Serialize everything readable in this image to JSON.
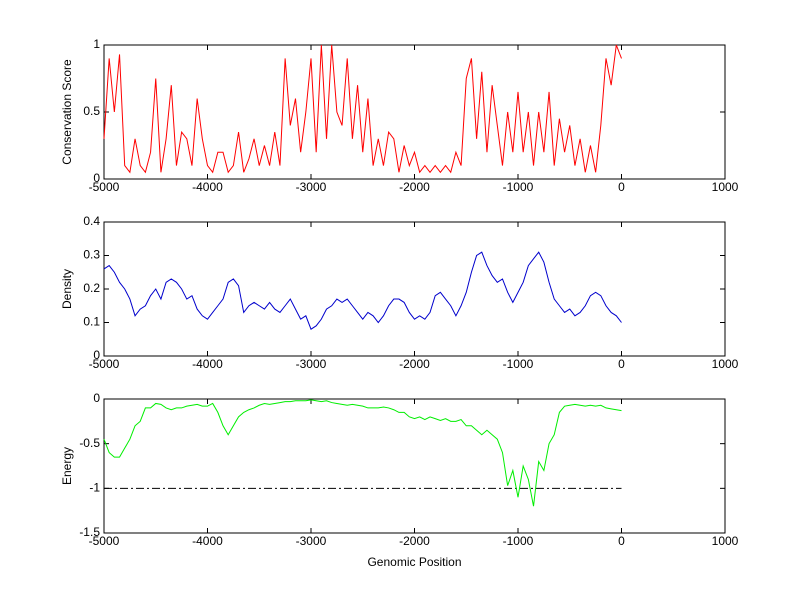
{
  "chart_data": [
    {
      "type": "line",
      "ylabel": "Conservation Score",
      "x": [
        -5000,
        -4950,
        -4900,
        -4850,
        -4800,
        -4750,
        -4700,
        -4650,
        -4600,
        -4550,
        -4500,
        -4450,
        -4400,
        -4350,
        -4300,
        -4250,
        -4200,
        -4150,
        -4100,
        -4050,
        -4000,
        -3950,
        -3900,
        -3850,
        -3800,
        -3750,
        -3700,
        -3650,
        -3600,
        -3550,
        -3500,
        -3450,
        -3400,
        -3350,
        -3300,
        -3250,
        -3200,
        -3150,
        -3100,
        -3050,
        -3000,
        -2950,
        -2900,
        -2850,
        -2800,
        -2750,
        -2700,
        -2650,
        -2600,
        -2550,
        -2500,
        -2450,
        -2400,
        -2350,
        -2300,
        -2250,
        -2200,
        -2150,
        -2100,
        -2050,
        -2000,
        -1950,
        -1900,
        -1850,
        -1800,
        -1750,
        -1700,
        -1650,
        -1600,
        -1550,
        -1500,
        -1450,
        -1400,
        -1350,
        -1300,
        -1250,
        -1200,
        -1150,
        -1100,
        -1050,
        -1000,
        -950,
        -900,
        -850,
        -800,
        -750,
        -700,
        -650,
        -600,
        -550,
        -500,
        -450,
        -400,
        -350,
        -300,
        -250,
        -200,
        -150,
        -100,
        -50,
        0
      ],
      "series": [
        {
          "color": "#ff0000",
          "values": [
            0.3,
            0.9,
            0.5,
            0.93,
            0.1,
            0.05,
            0.3,
            0.1,
            0.05,
            0.2,
            0.75,
            0.05,
            0.3,
            0.7,
            0.1,
            0.35,
            0.3,
            0.1,
            0.6,
            0.3,
            0.1,
            0.05,
            0.2,
            0.2,
            0.05,
            0.1,
            0.35,
            0.05,
            0.15,
            0.3,
            0.1,
            0.25,
            0.1,
            0.35,
            0.1,
            0.9,
            0.4,
            0.6,
            0.2,
            0.5,
            0.9,
            0.2,
            1.0,
            0.3,
            1.0,
            0.5,
            0.4,
            0.9,
            0.3,
            0.7,
            0.2,
            0.6,
            0.1,
            0.3,
            0.1,
            0.35,
            0.3,
            0.05,
            0.25,
            0.1,
            0.2,
            0.05,
            0.1,
            0.05,
            0.1,
            0.05,
            0.1,
            0.05,
            0.2,
            0.1,
            0.75,
            0.9,
            0.3,
            0.8,
            0.2,
            0.7,
            0.4,
            0.1,
            0.5,
            0.2,
            0.65,
            0.2,
            0.5,
            0.1,
            0.5,
            0.2,
            0.65,
            0.1,
            0.45,
            0.2,
            0.4,
            0.1,
            0.3,
            0.05,
            0.25,
            0.05,
            0.4,
            0.9,
            0.7,
            1.0,
            0.9
          ]
        }
      ],
      "xlim": [
        -5000,
        1000
      ],
      "xticks": [
        -5000,
        -4000,
        -3000,
        -2000,
        -1000,
        0,
        1000
      ],
      "ylim": [
        0,
        1
      ],
      "yticks": [
        0,
        0.5,
        1
      ]
    },
    {
      "type": "line",
      "ylabel": "Density",
      "x": [
        -5000,
        -4950,
        -4900,
        -4850,
        -4800,
        -4750,
        -4700,
        -4650,
        -4600,
        -4550,
        -4500,
        -4450,
        -4400,
        -4350,
        -4300,
        -4250,
        -4200,
        -4150,
        -4100,
        -4050,
        -4000,
        -3950,
        -3900,
        -3850,
        -3800,
        -3750,
        -3700,
        -3650,
        -3600,
        -3550,
        -3500,
        -3450,
        -3400,
        -3350,
        -3300,
        -3250,
        -3200,
        -3150,
        -3100,
        -3050,
        -3000,
        -2950,
        -2900,
        -2850,
        -2800,
        -2750,
        -2700,
        -2650,
        -2600,
        -2550,
        -2500,
        -2450,
        -2400,
        -2350,
        -2300,
        -2250,
        -2200,
        -2150,
        -2100,
        -2050,
        -2000,
        -1950,
        -1900,
        -1850,
        -1800,
        -1750,
        -1700,
        -1650,
        -1600,
        -1550,
        -1500,
        -1450,
        -1400,
        -1350,
        -1300,
        -1250,
        -1200,
        -1150,
        -1100,
        -1050,
        -1000,
        -950,
        -900,
        -850,
        -800,
        -750,
        -700,
        -650,
        -600,
        -550,
        -500,
        -450,
        -400,
        -350,
        -300,
        -250,
        -200,
        -150,
        -100,
        -50,
        0
      ],
      "series": [
        {
          "color": "#0000cc",
          "values": [
            0.26,
            0.27,
            0.25,
            0.22,
            0.2,
            0.17,
            0.12,
            0.14,
            0.15,
            0.18,
            0.2,
            0.17,
            0.22,
            0.23,
            0.22,
            0.2,
            0.17,
            0.18,
            0.14,
            0.12,
            0.11,
            0.13,
            0.15,
            0.17,
            0.22,
            0.23,
            0.21,
            0.13,
            0.15,
            0.16,
            0.15,
            0.14,
            0.16,
            0.14,
            0.13,
            0.15,
            0.17,
            0.14,
            0.11,
            0.12,
            0.08,
            0.09,
            0.11,
            0.14,
            0.15,
            0.17,
            0.16,
            0.17,
            0.15,
            0.13,
            0.11,
            0.13,
            0.12,
            0.1,
            0.12,
            0.15,
            0.17,
            0.17,
            0.16,
            0.13,
            0.11,
            0.12,
            0.11,
            0.13,
            0.18,
            0.19,
            0.17,
            0.15,
            0.12,
            0.15,
            0.19,
            0.25,
            0.3,
            0.31,
            0.27,
            0.24,
            0.22,
            0.23,
            0.19,
            0.16,
            0.19,
            0.22,
            0.27,
            0.29,
            0.31,
            0.28,
            0.22,
            0.17,
            0.15,
            0.13,
            0.14,
            0.12,
            0.13,
            0.15,
            0.18,
            0.19,
            0.18,
            0.15,
            0.13,
            0.12,
            0.1
          ]
        }
      ],
      "xlim": [
        -5000,
        1000
      ],
      "xticks": [
        -5000,
        -4000,
        -3000,
        -2000,
        -1000,
        0,
        1000
      ],
      "ylim": [
        0,
        0.4
      ],
      "yticks": [
        0,
        0.1,
        0.2,
        0.3,
        0.4
      ]
    },
    {
      "type": "line",
      "ylabel": "Energy",
      "xlabel": "Genomic Position",
      "x": [
        -5000,
        -4950,
        -4900,
        -4850,
        -4800,
        -4750,
        -4700,
        -4650,
        -4600,
        -4550,
        -4500,
        -4450,
        -4400,
        -4350,
        -4300,
        -4250,
        -4200,
        -4150,
        -4100,
        -4050,
        -4000,
        -3950,
        -3900,
        -3850,
        -3800,
        -3750,
        -3700,
        -3650,
        -3600,
        -3550,
        -3500,
        -3450,
        -3400,
        -3350,
        -3300,
        -3250,
        -3200,
        -3150,
        -3100,
        -3050,
        -3000,
        -2950,
        -2900,
        -2850,
        -2800,
        -2750,
        -2700,
        -2650,
        -2600,
        -2550,
        -2500,
        -2450,
        -2400,
        -2350,
        -2300,
        -2250,
        -2200,
        -2150,
        -2100,
        -2050,
        -2000,
        -1950,
        -1900,
        -1850,
        -1800,
        -1750,
        -1700,
        -1650,
        -1600,
        -1550,
        -1500,
        -1450,
        -1400,
        -1350,
        -1300,
        -1250,
        -1200,
        -1150,
        -1100,
        -1050,
        -1000,
        -950,
        -900,
        -850,
        -800,
        -750,
        -700,
        -650,
        -600,
        -550,
        -500,
        -450,
        -400,
        -350,
        -300,
        -250,
        -200,
        -150,
        -100,
        -50,
        0
      ],
      "series": [
        {
          "color": "#00ee00",
          "values": [
            -0.45,
            -0.6,
            -0.65,
            -0.65,
            -0.55,
            -0.45,
            -0.3,
            -0.25,
            -0.1,
            -0.1,
            -0.05,
            -0.06,
            -0.1,
            -0.12,
            -0.1,
            -0.1,
            -0.08,
            -0.07,
            -0.06,
            -0.08,
            -0.08,
            -0.05,
            -0.15,
            -0.3,
            -0.4,
            -0.3,
            -0.2,
            -0.15,
            -0.12,
            -0.1,
            -0.07,
            -0.05,
            -0.06,
            -0.05,
            -0.04,
            -0.03,
            -0.03,
            -0.02,
            -0.02,
            -0.02,
            -0.01,
            -0.02,
            -0.03,
            -0.02,
            -0.04,
            -0.05,
            -0.06,
            -0.07,
            -0.06,
            -0.07,
            -0.08,
            -0.1,
            -0.1,
            -0.1,
            -0.09,
            -0.1,
            -0.12,
            -0.15,
            -0.15,
            -0.2,
            -0.22,
            -0.2,
            -0.23,
            -0.2,
            -0.22,
            -0.24,
            -0.22,
            -0.25,
            -0.25,
            -0.23,
            -0.3,
            -0.3,
            -0.35,
            -0.4,
            -0.35,
            -0.4,
            -0.45,
            -0.6,
            -0.97,
            -0.8,
            -1.1,
            -0.75,
            -0.9,
            -1.2,
            -0.7,
            -0.8,
            -0.5,
            -0.4,
            -0.15,
            -0.08,
            -0.07,
            -0.06,
            -0.07,
            -0.08,
            -0.07,
            -0.08,
            -0.07,
            -0.1,
            -0.11,
            -0.12,
            -0.13
          ]
        }
      ],
      "hlines": [
        {
          "y": -1,
          "xmin": -5000,
          "xmax": 0,
          "color": "#000000",
          "style": "dashdot"
        }
      ],
      "xlim": [
        -5000,
        1000
      ],
      "xticks": [
        -5000,
        -4000,
        -3000,
        -2000,
        -1000,
        0,
        1000
      ],
      "ylim": [
        -1.5,
        0
      ],
      "yticks": [
        -1.5,
        -1,
        -0.5,
        0
      ]
    }
  ]
}
